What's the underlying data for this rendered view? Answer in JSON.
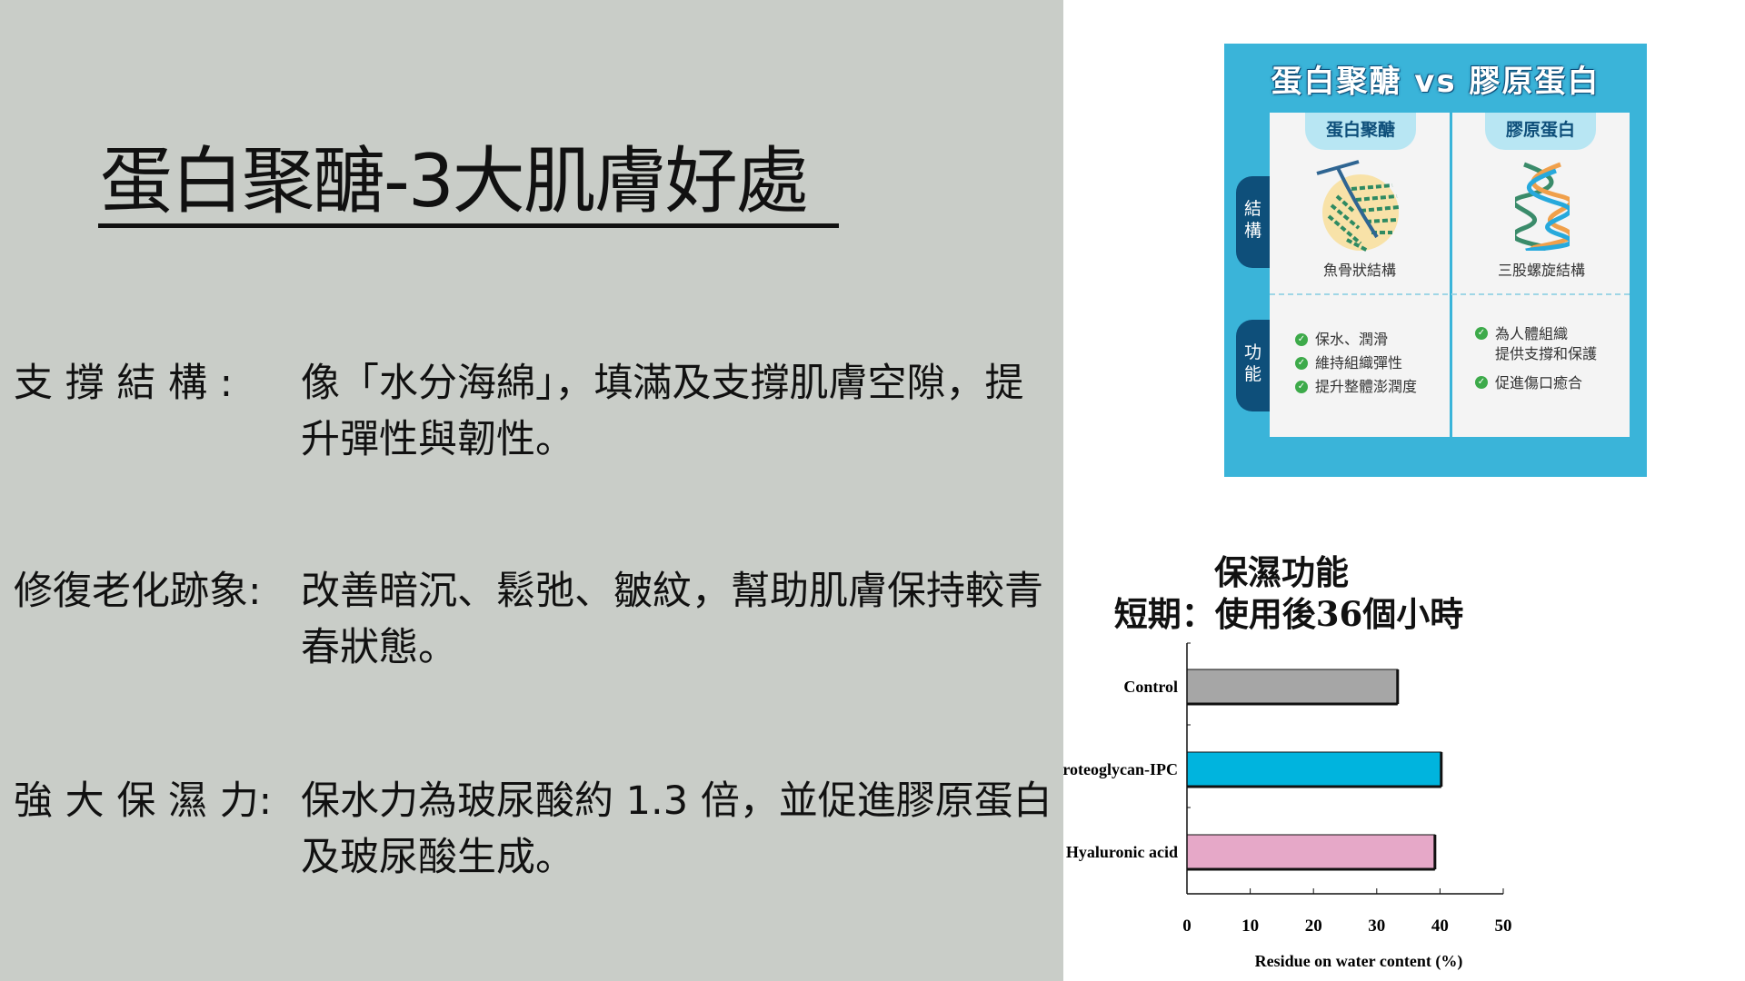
{
  "slide": {
    "title": "蛋白聚醣-3大肌膚好處",
    "benefits": [
      {
        "label": "支 撐 結 構 :",
        "text": "像「水分海綿」，填滿及支撐肌膚空隙，提升彈性與韌性。"
      },
      {
        "label": "修復老化跡象:",
        "text": "改善暗沉、鬆弛、皺紋，幫助肌膚保持較青春狀態。"
      },
      {
        "label": "強 大 保 濕 力:",
        "text": "保水力為玻尿酸約 1.3 倍，並促進膠原蛋白及玻尿酸生成。"
      }
    ]
  },
  "infographic": {
    "title": "蛋白聚醣 vs 膠原蛋白",
    "columns": [
      {
        "header": "蛋白聚醣",
        "structure": "魚骨狀結構",
        "functions": [
          "保水、潤滑",
          "維持組織彈性",
          "提升整體澎潤度"
        ]
      },
      {
        "header": "膠原蛋白",
        "structure": "三股螺旋結構",
        "functions": [
          "為人體組織\n提供支撐和保護",
          "促進傷口癒合"
        ]
      }
    ],
    "row_labels": [
      "結\n構",
      "功\n能"
    ],
    "colors": {
      "background": "#3ab4d9",
      "navy": "#0e4f7a",
      "check": "#3daa4a"
    }
  },
  "chart_data": {
    "type": "bar",
    "orientation": "horizontal",
    "title": "保濕功能",
    "subtitle": "短期：使用後36個小時",
    "categories": [
      "Control",
      "Proteoglycan-IPC",
      "Hyaluronic acid"
    ],
    "values": [
      33.3,
      40.2,
      39.2
    ],
    "colors": [
      "#a6a6a6",
      "#00b4de",
      "#e6a8c8"
    ],
    "xlabel": "Residue on water content (%)",
    "xlim": [
      0,
      50
    ],
    "xticks": [
      0,
      10,
      20,
      30,
      40,
      50
    ],
    "grid": false
  }
}
